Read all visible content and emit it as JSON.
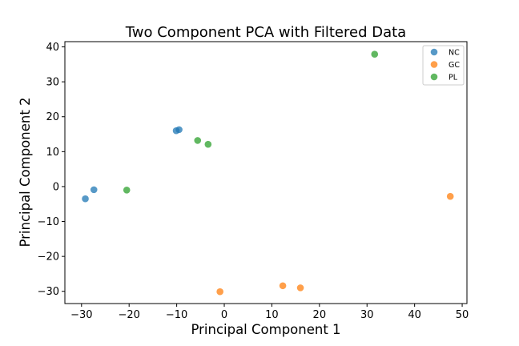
{
  "chart_data": {
    "type": "scatter",
    "title": "Two Component PCA with Filtered Data",
    "xlabel": "Principal Component 1",
    "ylabel": "Principal Component 2",
    "xlim": [
      -33.5,
      51
    ],
    "ylim": [
      -33.5,
      41.5
    ],
    "xticks": [
      -30,
      -20,
      -10,
      0,
      10,
      20,
      30,
      40,
      50
    ],
    "yticks": [
      -30,
      -20,
      -10,
      0,
      10,
      20,
      30,
      40
    ],
    "grid": false,
    "legend_position": "top-right",
    "series": [
      {
        "name": "NC",
        "color": "#1f77b4",
        "points": [
          {
            "x": -29.2,
            "y": -3.5
          },
          {
            "x": -27.4,
            "y": -0.9
          },
          {
            "x": -10.1,
            "y": 16.0
          },
          {
            "x": -9.5,
            "y": 16.3
          }
        ]
      },
      {
        "name": "GC",
        "color": "#ff7f0e",
        "points": [
          {
            "x": -0.9,
            "y": -30.1
          },
          {
            "x": 12.3,
            "y": -28.4
          },
          {
            "x": 16.0,
            "y": -29.0
          },
          {
            "x": 47.5,
            "y": -2.8
          }
        ]
      },
      {
        "name": "PL",
        "color": "#2ca02c",
        "points": [
          {
            "x": -20.5,
            "y": -1.0
          },
          {
            "x": -5.6,
            "y": 13.2
          },
          {
            "x": -3.4,
            "y": 12.1
          },
          {
            "x": 31.6,
            "y": 37.9
          }
        ]
      }
    ]
  }
}
